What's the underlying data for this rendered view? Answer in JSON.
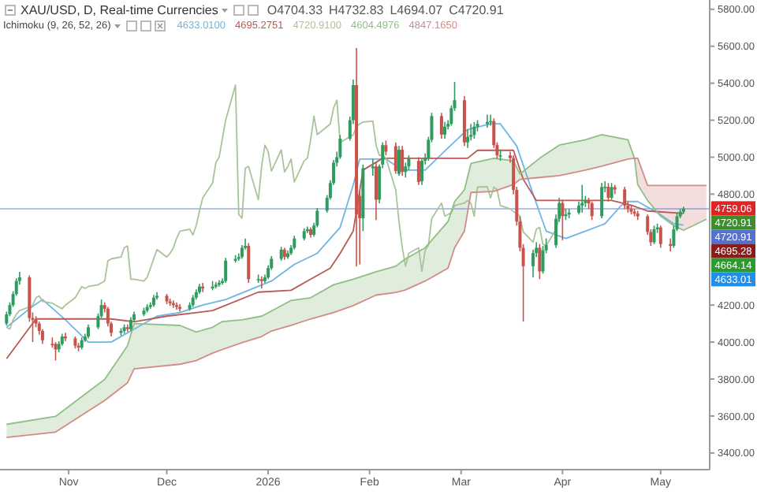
{
  "chart_data": {
    "type": "candlestick",
    "title": "XAU/USD, D, Real-time Currencies",
    "subtitle": "Ichimoku (9, 26, 52, 26)",
    "annotations": [
      "O4704.33",
      "H4732.83",
      "L4694.07",
      "C4720.91",
      "4633.0100",
      "4695.2751",
      "4720.9100",
      "4604.4976",
      "4847.1650",
      "4759.06",
      "4720.91",
      "4695.28",
      "4664.14",
      "4633.01"
    ],
    "x": [
      "2025-10-13",
      "2025-10-14",
      "2025-10-15",
      "2025-10-16",
      "2025-10-17",
      "2025-10-20",
      "2025-10-21",
      "2025-10-22",
      "2025-10-23",
      "2025-10-24",
      "2025-10-27",
      "2025-10-28",
      "2025-10-29",
      "2025-10-30",
      "2025-10-31",
      "2025-11-03",
      "2025-11-04",
      "2025-11-05",
      "2025-11-06",
      "2025-11-07",
      "2025-11-10",
      "2025-11-11",
      "2025-11-12",
      "2025-11-13",
      "2025-11-14",
      "2025-11-17",
      "2025-11-18",
      "2025-11-19",
      "2025-11-20",
      "2025-11-21",
      "2025-11-24",
      "2025-11-25",
      "2025-11-26",
      "2025-11-27",
      "2025-11-28",
      "2025-12-01",
      "2025-12-02",
      "2025-12-03",
      "2025-12-04",
      "2025-12-05",
      "2025-12-08",
      "2025-12-09",
      "2025-12-10",
      "2025-12-11",
      "2025-12-12",
      "2025-12-15",
      "2025-12-16",
      "2025-12-17",
      "2025-12-18",
      "2025-12-19",
      "2025-12-22",
      "2025-12-23",
      "2025-12-24",
      "2025-12-25",
      "2025-12-26",
      "2025-12-29",
      "2025-12-30",
      "2025-12-31",
      "2026-01-01",
      "2026-01-02",
      "2026-01-05",
      "2026-01-06",
      "2026-01-07",
      "2026-01-08",
      "2026-01-09",
      "2026-01-12",
      "2026-01-13",
      "2026-01-14",
      "2026-01-15",
      "2026-01-16",
      "2026-01-19",
      "2026-01-20",
      "2026-01-21",
      "2026-01-22",
      "2026-01-23",
      "2026-01-26",
      "2026-01-27",
      "2026-01-28",
      "2026-01-29",
      "2026-01-30",
      "2026-02-02",
      "2026-02-03",
      "2026-02-04",
      "2026-02-05",
      "2026-02-06",
      "2026-02-09",
      "2026-02-10",
      "2026-02-11",
      "2026-02-12",
      "2026-02-13",
      "2026-02-16",
      "2026-02-17",
      "2026-02-18",
      "2026-02-19",
      "2026-02-20",
      "2026-02-23",
      "2026-02-24",
      "2026-02-25",
      "2026-02-26",
      "2026-02-27",
      "2026-03-02",
      "2026-03-03",
      "2026-03-04",
      "2026-03-05",
      "2026-03-06",
      "2026-03-09",
      "2026-03-10",
      "2026-03-11",
      "2026-03-12",
      "2026-03-13",
      "2026-03-16",
      "2026-03-17",
      "2026-03-18",
      "2026-03-19",
      "2026-03-20",
      "2026-03-23",
      "2026-03-24",
      "2026-03-25",
      "2026-03-26",
      "2026-03-27",
      "2026-03-30",
      "2026-03-31",
      "2026-04-01",
      "2026-04-02",
      "2026-04-03",
      "2026-04-06",
      "2026-04-07",
      "2026-04-08",
      "2026-04-09",
      "2026-04-10",
      "2026-04-13",
      "2026-04-14",
      "2026-04-15",
      "2026-04-16",
      "2026-04-17",
      "2026-04-20",
      "2026-04-21",
      "2026-04-22",
      "2026-04-23",
      "2026-04-24",
      "2026-04-27",
      "2026-04-28",
      "2026-04-29",
      "2026-04-30",
      "2026-05-01",
      "2026-05-04",
      "2026-05-05",
      "2026-05-06",
      "2026-05-07",
      "2026-05-08"
    ],
    "ohlc": [
      [
        4100,
        4165,
        4090,
        4150
      ],
      [
        4150,
        4215,
        4140,
        4200
      ],
      [
        4200,
        4275,
        4190,
        4260
      ],
      [
        4260,
        4345,
        4250,
        4330
      ],
      [
        4330,
        4380,
        4310,
        4350
      ],
      [
        4350,
        4360,
        4110,
        4130
      ],
      [
        4130,
        4160,
        4000,
        4120
      ],
      [
        4120,
        4140,
        4080,
        4100
      ],
      [
        4100,
        4110,
        4040,
        4060
      ],
      [
        4060,
        4070,
        3990,
        4010
      ],
      [
        3990,
        4025,
        3970,
        3990
      ],
      [
        3990,
        4000,
        3900,
        3960
      ],
      [
        3960,
        4005,
        3945,
        3990
      ],
      [
        3990,
        4045,
        3980,
        4030
      ],
      [
        4030,
        4050,
        4005,
        4020
      ],
      [
        4020,
        4030,
        3965,
        3980
      ],
      [
        3980,
        3995,
        3950,
        3970
      ],
      [
        3970,
        4025,
        3960,
        4010
      ],
      [
        4010,
        4045,
        4000,
        4030
      ],
      [
        4030,
        4095,
        4020,
        4080
      ],
      [
        4080,
        4155,
        4070,
        4140
      ],
      [
        4140,
        4230,
        4130,
        4200
      ],
      [
        4200,
        4215,
        4160,
        4180
      ],
      [
        4180,
        4190,
        4085,
        4100
      ],
      [
        4100,
        4110,
        4030,
        4050
      ],
      [
        4050,
        4075,
        4035,
        4060
      ],
      [
        4060,
        4095,
        4045,
        4080
      ],
      [
        4080,
        4095,
        4055,
        4070
      ],
      [
        4070,
        4135,
        4060,
        4120
      ],
      [
        4120,
        4165,
        4110,
        4150
      ],
      [
        4150,
        4185,
        4140,
        4170
      ],
      [
        4170,
        4205,
        4160,
        4190
      ],
      [
        4190,
        4215,
        4180,
        4200
      ],
      [
        4200,
        4255,
        4190,
        4240
      ],
      [
        4240,
        4270,
        4230,
        4250
      ],
      [
        4250,
        4260,
        4205,
        4220
      ],
      [
        4220,
        4235,
        4195,
        4210
      ],
      [
        4210,
        4225,
        4185,
        4200
      ],
      [
        4200,
        4215,
        4175,
        4190
      ],
      [
        4190,
        4205,
        4165,
        4180
      ],
      [
        4180,
        4215,
        4170,
        4200
      ],
      [
        4200,
        4255,
        4190,
        4240
      ],
      [
        4240,
        4285,
        4230,
        4270
      ],
      [
        4270,
        4315,
        4260,
        4300
      ],
      [
        4300,
        4320,
        4270,
        4290
      ],
      [
        4290,
        4330,
        4280,
        4300
      ],
      [
        4300,
        4325,
        4290,
        4310
      ],
      [
        4310,
        4335,
        4300,
        4320
      ],
      [
        4320,
        4345,
        4310,
        4330
      ],
      [
        4330,
        4455,
        4320,
        4440
      ],
      [
        4440,
        4470,
        4430,
        4450
      ],
      [
        4450,
        4480,
        4440,
        4460
      ],
      [
        4460,
        4525,
        4450,
        4510
      ],
      [
        4510,
        4560,
        4500,
        4520
      ],
      [
        4520,
        4535,
        4320,
        4340
      ],
      [
        4340,
        4365,
        4320,
        4340
      ],
      [
        4340,
        4355,
        4290,
        4330
      ],
      [
        4330,
        4365,
        4320,
        4350
      ],
      [
        4350,
        4415,
        4340,
        4400
      ],
      [
        4400,
        4465,
        4390,
        4450
      ],
      [
        4450,
        4515,
        4440,
        4500
      ],
      [
        4500,
        4510,
        4445,
        4460
      ],
      [
        4460,
        4495,
        4450,
        4480
      ],
      [
        4480,
        4525,
        4470,
        4510
      ],
      [
        4510,
        4575,
        4500,
        4560
      ],
      [
        4560,
        4615,
        4550,
        4600
      ],
      [
        4600,
        4625,
        4590,
        4610
      ],
      [
        4610,
        4620,
        4565,
        4580
      ],
      [
        4580,
        4645,
        4570,
        4630
      ],
      [
        4630,
        4725,
        4620,
        4710
      ],
      [
        4710,
        4795,
        4700,
        4780
      ],
      [
        4780,
        4875,
        4770,
        4860
      ],
      [
        4860,
        4985,
        4850,
        4970
      ],
      [
        4970,
        5030,
        4950,
        5000
      ],
      [
        5000,
        5120,
        4990,
        5100
      ],
      [
        5100,
        5220,
        5090,
        5200
      ],
      [
        5200,
        5420,
        5180,
        5390
      ],
      [
        5390,
        5590,
        4410,
        4690
      ],
      [
        4790,
        4820,
        4420,
        4670
      ],
      [
        4670,
        4960,
        4600,
        4940
      ],
      [
        4940,
        4990,
        4900,
        4950
      ],
      [
        4950,
        4970,
        4660,
        4770
      ],
      [
        4770,
        4960,
        4750,
        4950
      ],
      [
        4960,
        5080,
        4940,
        5065
      ],
      [
        5065,
        5090,
        5010,
        5030
      ],
      [
        5060,
        5080,
        4910,
        4925
      ],
      [
        4910,
        5060,
        4900,
        5040
      ],
      [
        5040,
        5060,
        4900,
        4920
      ],
      [
        4920,
        4970,
        4890,
        4950
      ],
      [
        4950,
        5010,
        4930,
        4990
      ],
      [
        4980,
        5000,
        4850,
        4866
      ],
      [
        4870,
        4990,
        4850,
        4980
      ],
      [
        4980,
        5020,
        4960,
        4995
      ],
      [
        4995,
        5110,
        4980,
        5094
      ],
      [
        5094,
        5240,
        5080,
        5222
      ],
      [
        5222,
        5240,
        5100,
        5122
      ],
      [
        5122,
        5190,
        5100,
        5165
      ],
      [
        5165,
        5200,
        5150,
        5180
      ],
      [
        5180,
        5280,
        5170,
        5265
      ],
      [
        5265,
        5407,
        5250,
        5308
      ],
      [
        5308,
        5330,
        5060,
        5080
      ],
      [
        5080,
        5150,
        5050,
        5110
      ],
      [
        5110,
        5180,
        5090,
        5120
      ],
      [
        5120,
        5190,
        5100,
        5165
      ],
      [
        5165,
        5200,
        5140,
        5180
      ],
      [
        5180,
        5230,
        5160,
        5190
      ],
      [
        5190,
        5230,
        5170,
        5195
      ],
      [
        5195,
        5210,
        5050,
        5065
      ],
      [
        5065,
        5080,
        4990,
        5010
      ],
      [
        5010,
        5040,
        4980,
        5010
      ],
      [
        5010,
        5030,
        4970,
        4995
      ],
      [
        4995,
        5010,
        4800,
        4823
      ],
      [
        4823,
        4840,
        4630,
        4652
      ],
      [
        4652,
        4680,
        4490,
        4510
      ],
      [
        4510,
        4530,
        4111,
        4410
      ],
      [
        4410,
        4500,
        4350,
        4481
      ],
      [
        4481,
        4540,
        4460,
        4510
      ],
      [
        4510,
        4530,
        4340,
        4382
      ],
      [
        4382,
        4520,
        4370,
        4496
      ],
      [
        4496,
        4560,
        4480,
        4524
      ],
      [
        4524,
        4690,
        4510,
        4667
      ],
      [
        4667,
        4780,
        4650,
        4752
      ],
      [
        4752,
        4770,
        4550,
        4681
      ],
      [
        4681,
        4720,
        4660,
        4690
      ],
      [
        4690,
        4720,
        4670,
        4700
      ],
      [
        4700,
        4760,
        4690,
        4738
      ],
      [
        4738,
        4850,
        4700,
        4752
      ],
      [
        4752,
        4790,
        4730,
        4766
      ],
      [
        4766,
        4780,
        4720,
        4750
      ],
      [
        4750,
        4760,
        4660,
        4681
      ],
      [
        4681,
        4860,
        4670,
        4838
      ],
      [
        4838,
        4870,
        4810,
        4840
      ],
      [
        4840,
        4860,
        4760,
        4780
      ],
      [
        4780,
        4860,
        4770,
        4838
      ],
      [
        4838,
        4850,
        4800,
        4825
      ],
      [
        4825,
        4840,
        4720,
        4738
      ],
      [
        4738,
        4760,
        4700,
        4720
      ],
      [
        4720,
        4740,
        4690,
        4705
      ],
      [
        4705,
        4720,
        4680,
        4695
      ],
      [
        4695,
        4710,
        4660,
        4680
      ],
      [
        4680,
        4690,
        4580,
        4595
      ],
      [
        4595,
        4610,
        4520,
        4540
      ],
      [
        4540,
        4630,
        4530,
        4610
      ],
      [
        4610,
        4640,
        4590,
        4620
      ],
      [
        4620,
        4630,
        4510,
        4530
      ],
      [
        4530,
        4560,
        4490,
        4520
      ],
      [
        4520,
        4630,
        4510,
        4610
      ],
      [
        4610,
        4700,
        4600,
        4680
      ],
      [
        4680,
        4720,
        4670,
        4705
      ],
      [
        4704.33,
        4732.83,
        4694.07,
        4720.91
      ]
    ],
    "colors": [
      "#2e9b5f",
      "#2e9b5f",
      "#2e9b5f",
      "#2e9b5f",
      "#2e9b5f",
      "#c9534b",
      "#c9534b",
      "#c9534b",
      "#c9534b",
      "#c9534b",
      "#c9534b",
      "#c9534b",
      "#2e9b5f",
      "#2e9b5f",
      "#c9534b",
      "#c9534b",
      "#c9534b",
      "#2e9b5f",
      "#2e9b5f",
      "#2e9b5f",
      "#2e9b5f",
      "#2e9b5f",
      "#c9534b",
      "#c9534b",
      "#c9534b",
      "#2e9b5f",
      "#2e9b5f",
      "#c9534b",
      "#2e9b5f",
      "#2e9b5f",
      "#2e9b5f",
      "#2e9b5f",
      "#2e9b5f",
      "#2e9b5f",
      "#2e9b5f",
      "#c9534b",
      "#c9534b",
      "#c9534b",
      "#c9534b",
      "#c9534b",
      "#2e9b5f",
      "#2e9b5f",
      "#2e9b5f",
      "#2e9b5f",
      "#c9534b",
      "#2e9b5f",
      "#2e9b5f",
      "#2e9b5f",
      "#2e9b5f",
      "#2e9b5f",
      "#2e9b5f",
      "#2e9b5f",
      "#2e9b5f",
      "#2e9b5f",
      "#c9534b",
      "#2e9b5f",
      "#c9534b",
      "#2e9b5f",
      "#2e9b5f",
      "#2e9b5f",
      "#2e9b5f",
      "#c9534b",
      "#2e9b5f",
      "#2e9b5f",
      "#2e9b5f",
      "#2e9b5f",
      "#2e9b5f",
      "#c9534b",
      "#2e9b5f",
      "#2e9b5f",
      "#2e9b5f",
      "#2e9b5f",
      "#2e9b5f",
      "#2e9b5f",
      "#2e9b5f",
      "#2e9b5f",
      "#2e9b5f",
      "#c9534b",
      "#c9534b",
      "#2e9b5f",
      "#2e9b5f",
      "#c9534b",
      "#2e9b5f",
      "#2e9b5f",
      "#c9534b",
      "#c9534b",
      "#2e9b5f",
      "#c9534b",
      "#2e9b5f",
      "#2e9b5f",
      "#c9534b",
      "#2e9b5f",
      "#2e9b5f",
      "#2e9b5f",
      "#2e9b5f",
      "#c9534b",
      "#2e9b5f",
      "#2e9b5f",
      "#2e9b5f",
      "#2e9b5f",
      "#c9534b",
      "#2e9b5f",
      "#2e9b5f",
      "#2e9b5f",
      "#2e9b5f",
      "#2e9b5f",
      "#2e9b5f",
      "#c9534b",
      "#c9534b",
      "#2e9b5f",
      "#c9534b",
      "#c9534b",
      "#c9534b",
      "#c9534b",
      "#c9534b",
      "#2e9b5f",
      "#2e9b5f",
      "#c9534b",
      "#2e9b5f",
      "#2e9b5f",
      "#2e9b5f",
      "#2e9b5f",
      "#c9534b",
      "#2e9b5f",
      "#2e9b5f",
      "#2e9b5f",
      "#2e9b5f",
      "#2e9b5f",
      "#c9534b",
      "#c9534b",
      "#2e9b5f",
      "#2e9b5f",
      "#c9534b",
      "#2e9b5f",
      "#c9534b",
      "#c9534b",
      "#c9534b",
      "#c9534b",
      "#c9534b",
      "#c9534b",
      "#c9534b",
      "#c9534b",
      "#2e9b5f",
      "#2e9b5f",
      "#c9534b",
      "#c9534b",
      "#2e9b5f",
      "#2e9b5f",
      "#2e9b5f",
      "#2e9b5f"
    ],
    "series": [
      {
        "type": "line",
        "color": "#6fb6e0",
        "x": [
          "2025-10-13",
          "2025-10-20",
          "2025-10-24",
          "2025-10-31",
          "2025-11-07",
          "2025-11-14",
          "2025-11-21",
          "2025-11-28",
          "2025-12-05",
          "2025-12-12",
          "2025-12-19",
          "2025-12-26",
          "2026-01-02",
          "2026-01-09",
          "2026-01-16",
          "2026-01-23",
          "2026-01-27",
          "2026-01-29",
          "2026-02-03",
          "2026-02-06",
          "2026-02-11",
          "2026-02-18",
          "2026-02-25",
          "2026-03-03",
          "2026-03-10",
          "2026-03-13",
          "2026-03-18",
          "2026-03-23",
          "2026-03-27",
          "2026-04-02",
          "2026-04-08",
          "2026-04-14",
          "2026-04-20",
          "2026-04-24",
          "2026-04-30",
          "2026-05-05",
          "2026-05-08"
        ],
        "values": [
          4080,
          4180,
          4230,
          4120,
          4000,
          4000,
          4070,
          4140,
          4160,
          4200,
          4230,
          4280,
          4330,
          4420,
          4480,
          4620,
          4850,
          4990,
          4990,
          4990,
          4930,
          4930,
          5050,
          5150,
          5180,
          5180,
          5060,
          4800,
          4600,
          4560,
          4600,
          4640,
          4760,
          4760,
          4700,
          4640,
          4633.01
        ]
      },
      {
        "type": "line",
        "color": "#b85a55",
        "x": [
          "2025-10-13",
          "2025-10-22",
          "2025-11-14",
          "2025-11-21",
          "2025-12-01",
          "2025-12-15",
          "2025-12-29",
          "2026-01-08",
          "2026-01-14",
          "2026-01-20",
          "2026-01-23",
          "2026-01-27",
          "2026-01-30",
          "2026-02-05",
          "2026-03-03",
          "2026-03-06",
          "2026-03-17",
          "2026-03-20",
          "2026-03-24",
          "2026-04-16",
          "2026-04-22",
          "2026-04-27",
          "2026-05-08"
        ],
        "values": [
          3910,
          4125,
          4125,
          4110,
          4140,
          4170,
          4270,
          4280,
          4340,
          4400,
          4480,
          4600,
          4930,
          4994,
          4994,
          5037,
          5037,
          4880,
          4766,
          4766,
          4740,
          4709,
          4695.28
        ]
      },
      {
        "type": "line",
        "color": "#a9c49a",
        "values": [
          4080,
          4070,
          4120,
          4150,
          4170,
          4190,
          4200,
          4240,
          4250,
          4220,
          4210,
          4200,
          4190,
          4180,
          4200,
          4240,
          4270,
          4300,
          4290,
          4300,
          4310,
          4320,
          4330,
          4440,
          4450,
          4460,
          4510,
          4520,
          4340,
          4340,
          4330,
          4350,
          4400,
          4450,
          4500,
          4460,
          4480,
          4510,
          4560,
          4600,
          4610,
          4580,
          4630,
          4710,
          4780,
          4860,
          4970,
          5000,
          5100,
          5200,
          5390,
          4690,
          4670,
          4940,
          4950,
          4770,
          4950,
          5065,
          5030,
          4925,
          5040,
          4920,
          4950,
          4990,
          4866,
          4980,
          4995,
          5094,
          5222,
          5122,
          5165,
          5180,
          5265,
          5308,
          5080,
          5110,
          5120,
          5165,
          5180,
          5190,
          5195,
          5065,
          5010,
          5010,
          4995,
          4823,
          4652,
          4510,
          4410,
          4481,
          4510,
          4382,
          4496,
          4524,
          4667,
          4752,
          4681,
          4690,
          4700,
          4738,
          4752,
          4766,
          4750,
          4681,
          4838,
          4840,
          4780,
          4838,
          4825,
          4738,
          4720,
          4705,
          4695,
          4680,
          4595,
          4540,
          4610,
          4620,
          4530,
          4520,
          4610,
          4680,
          4705,
          4720.91,
          null,
          null,
          null,
          null,
          null,
          null,
          null,
          null,
          null,
          null,
          null,
          null,
          null,
          null,
          null,
          null,
          null,
          null,
          null,
          null,
          null,
          null,
          null,
          null,
          null,
          null
        ]
      },
      {
        "type": "line",
        "color": "#8fbf85",
        "x": [
          "2025-10-13",
          "2025-10-28",
          "2025-11-12",
          "2025-11-19",
          "2025-11-21",
          "2025-12-05",
          "2025-12-10",
          "2025-12-15",
          "2025-12-18",
          "2025-12-24",
          "2025-12-30",
          "2026-01-02",
          "2026-01-08",
          "2026-01-14",
          "2026-01-21",
          "2026-01-27",
          "2026-02-03",
          "2026-02-09",
          "2026-02-12",
          "2026-02-18",
          "2026-02-25",
          "2026-02-27",
          "2026-03-02",
          "2026-03-04",
          "2026-03-11",
          "2026-03-17",
          "2026-03-19",
          "2026-03-25",
          "2026-03-31",
          "2026-04-08",
          "2026-04-13",
          "2026-04-21",
          "2026-04-23",
          "2026-04-24",
          "2026-04-27",
          "2026-05-01",
          "2026-05-05",
          "2026-05-08",
          "2026-05-15"
        ],
        "values": [
          3555,
          3598,
          3798,
          3980,
          4100,
          4090,
          4054,
          4080,
          4111,
          4120,
          4140,
          4168,
          4225,
          4240,
          4310,
          4340,
          4380,
          4410,
          4450,
          4510,
          4652,
          4760,
          4823,
          4966,
          4994,
          4980,
          4909,
          4994,
          5065,
          5094,
          5122,
          5094,
          4994,
          4852,
          4766,
          4681,
          4630,
          4604.5,
          4664.14
        ],
        "lower": [
          3484,
          3513,
          3684,
          3780,
          3855,
          3880,
          3900,
          3940,
          3960,
          3997,
          4030,
          4060,
          4090,
          4125,
          4160,
          4197,
          4254,
          4268,
          4282,
          4330,
          4400,
          4510,
          4600,
          4809,
          4815,
          4852,
          4880,
          4890,
          4900,
          4930,
          4951,
          4990,
          4994,
          null,
          null,
          null,
          null,
          null,
          null
        ],
        "upper": [
          3555,
          3598,
          3798,
          3980,
          4100,
          4090,
          4054,
          4080,
          4111,
          4120,
          4140,
          4168,
          4225,
          4240,
          4310,
          4340,
          4380,
          4410,
          4450,
          4510,
          4652,
          4760,
          4823,
          4966,
          4994,
          4980,
          4909,
          4994,
          5065,
          5094,
          5122,
          5094,
          4994,
          null,
          null,
          null,
          null,
          null,
          null
        ]
      },
      {
        "type": "line",
        "color": "#d48a86",
        "x": [
          "2025-10-13",
          "2025-10-28",
          "2025-11-12",
          "2025-11-19",
          "2025-11-21",
          "2025-12-05",
          "2025-12-10",
          "2025-12-15",
          "2025-12-18",
          "2025-12-24",
          "2025-12-30",
          "2026-01-02",
          "2026-01-08",
          "2026-01-14",
          "2026-01-21",
          "2026-01-27",
          "2026-02-03",
          "2026-02-09",
          "2026-02-12",
          "2026-02-18",
          "2026-02-25",
          "2026-02-27",
          "2026-03-02",
          "2026-03-04",
          "2026-03-11",
          "2026-03-17",
          "2026-03-19",
          "2026-03-25",
          "2026-03-31",
          "2026-04-08",
          "2026-04-13",
          "2026-04-21",
          "2026-04-23",
          "2026-04-24",
          "2026-04-27",
          "2026-05-01",
          "2026-05-05",
          "2026-05-08",
          "2026-05-15"
        ],
        "values": [
          3484,
          3513,
          3684,
          3780,
          3855,
          3880,
          3900,
          3940,
          3960,
          3997,
          4030,
          4060,
          4090,
          4125,
          4160,
          4197,
          4254,
          4268,
          4282,
          4330,
          4400,
          4510,
          4600,
          4809,
          4815,
          4852,
          4880,
          4890,
          4900,
          4930,
          4951,
          4990,
          4994,
          4994,
          4847.17,
          4847.17,
          4847.17,
          4847.17,
          4847.17
        ],
        "lower": [
          null,
          null,
          null,
          null,
          null,
          null,
          null,
          null,
          null,
          null,
          null,
          null,
          null,
          null,
          null,
          null,
          null,
          null,
          null,
          null,
          null,
          null,
          null,
          null,
          null,
          null,
          null,
          null,
          null,
          null,
          null,
          null,
          4994,
          4852,
          4766,
          4681,
          4630,
          4604.5,
          4664.14
        ],
        "upper": [
          null,
          null,
          null,
          null,
          null,
          null,
          null,
          null,
          null,
          null,
          null,
          null,
          null,
          null,
          null,
          null,
          null,
          null,
          null,
          null,
          null,
          null,
          null,
          null,
          null,
          null,
          null,
          null,
          null,
          null,
          null,
          null,
          4994,
          4994,
          4847.17,
          4847.17,
          4847.17,
          4847.17,
          4847.17
        ]
      }
    ],
    "ref_lines": [
      {
        "axis": "y",
        "value": 4720.91,
        "label": "4720.91",
        "color": "#5470d0",
        "line_style": "solid"
      }
    ],
    "xlim": [
      "2025-10-11",
      "2026-05-16"
    ],
    "xticks": [
      {
        "value": "2025-11-01",
        "label": "Nov"
      },
      {
        "value": "2025-12-01",
        "label": "Dec"
      },
      {
        "value": "2026-01-01",
        "label": "2026"
      },
      {
        "value": "2026-02-01",
        "label": "Feb"
      },
      {
        "value": "2026-03-01",
        "label": "Mar"
      },
      {
        "value": "2026-04-01",
        "label": "Apr"
      },
      {
        "value": "2026-05-01",
        "label": "May"
      }
    ],
    "ylim": [
      3310,
      5850
    ],
    "yticks": [
      {
        "value": 3400,
        "label": "3400.00"
      },
      {
        "value": 3600,
        "label": "3600.00"
      },
      {
        "value": 3800,
        "label": "3800.00"
      },
      {
        "value": 4000,
        "label": "4000.00"
      },
      {
        "value": 4200,
        "label": "4200.00"
      },
      {
        "value": 4800,
        "label": "4800.00"
      },
      {
        "value": 5000,
        "label": "5000.00"
      },
      {
        "value": 5200,
        "label": "5200.00"
      },
      {
        "value": 5400,
        "label": "5400.00"
      },
      {
        "value": 5600,
        "label": "5600.00"
      },
      {
        "value": 5800,
        "label": "5800.00"
      }
    ]
  }
}
